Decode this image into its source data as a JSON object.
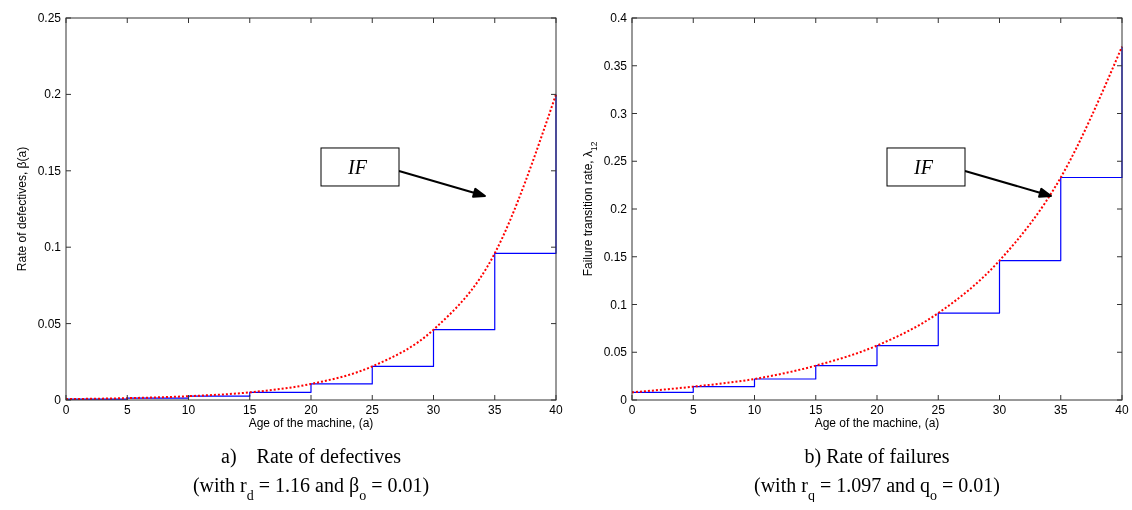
{
  "chart_data": [
    {
      "type": "line",
      "title": "a)    Rate of defectives",
      "subtitle": "(with r$_{d}$ = 1.16 and β$_{o}$ = 0.01)",
      "xlabel": "Age of the machine, (a)",
      "ylabel": "Rate of defectives, β(a)",
      "x": [
        0,
        5,
        10,
        15,
        20,
        25,
        30,
        35,
        40
      ],
      "xlim": [
        0,
        40
      ],
      "xticks": [
        0,
        5,
        10,
        15,
        20,
        25,
        30,
        35,
        40
      ],
      "ylim": [
        0,
        0.25
      ],
      "yticks": [
        0,
        0.05,
        0.1,
        0.15,
        0.2,
        0.25
      ],
      "grid": false,
      "series": [
        {
          "type": "step",
          "color": "#0000ff",
          "line_style": "solid",
          "values": [
            0.0006,
            0.0012,
            0.0025,
            0.005,
            0.0105,
            0.022,
            0.046,
            0.096,
            0.2
          ]
        },
        {
          "type": "line",
          "color": "#ff0000",
          "line_style": "dotted",
          "values": [
            0.0006,
            0.0012,
            0.0025,
            0.005,
            0.0105,
            0.022,
            0.046,
            0.096,
            0.2
          ]
        }
      ],
      "annotations": [
        "IF"
      ]
    },
    {
      "type": "line",
      "title": "b) Rate of failures",
      "subtitle": "(with r$_{q}$ = 1.097 and q$_{o}$ = 0.01)",
      "xlabel": "Age of the machine, (a)",
      "ylabel": "Failure transition rate, λ$_{12}$",
      "x": [
        0,
        5,
        10,
        15,
        20,
        25,
        30,
        35,
        40
      ],
      "xlim": [
        0,
        40
      ],
      "xticks": [
        0,
        5,
        10,
        15,
        20,
        25,
        30,
        35,
        40
      ],
      "ylim": [
        0,
        0.4
      ],
      "yticks": [
        0,
        0.05,
        0.1,
        0.15,
        0.2,
        0.25,
        0.3,
        0.35,
        0.4
      ],
      "grid": false,
      "series": [
        {
          "type": "step",
          "color": "#0000ff",
          "line_style": "solid",
          "values": [
            0.008,
            0.014,
            0.022,
            0.036,
            0.057,
            0.091,
            0.146,
            0.233,
            0.37
          ]
        },
        {
          "type": "line",
          "color": "#ff0000",
          "line_style": "dotted",
          "values": [
            0.008,
            0.014,
            0.022,
            0.036,
            0.057,
            0.091,
            0.146,
            0.233,
            0.37
          ]
        }
      ],
      "annotations": [
        "IF"
      ]
    }
  ]
}
